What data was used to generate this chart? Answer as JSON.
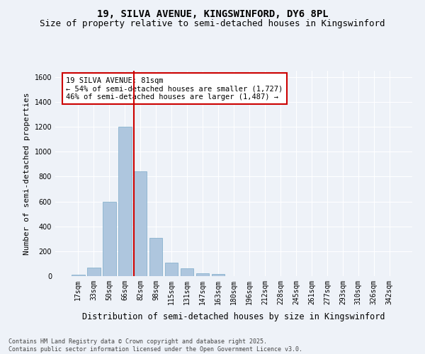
{
  "title": "19, SILVA AVENUE, KINGSWINFORD, DY6 8PL",
  "subtitle": "Size of property relative to semi-detached houses in Kingswinford",
  "xlabel": "Distribution of semi-detached houses by size in Kingswinford",
  "ylabel": "Number of semi-detached properties",
  "categories": [
    "17sqm",
    "33sqm",
    "50sqm",
    "66sqm",
    "82sqm",
    "98sqm",
    "115sqm",
    "131sqm",
    "147sqm",
    "163sqm",
    "180sqm",
    "196sqm",
    "212sqm",
    "228sqm",
    "245sqm",
    "261sqm",
    "277sqm",
    "293sqm",
    "310sqm",
    "326sqm",
    "342sqm"
  ],
  "values": [
    10,
    70,
    600,
    1200,
    840,
    310,
    110,
    60,
    25,
    15,
    0,
    0,
    0,
    0,
    0,
    0,
    0,
    0,
    0,
    0,
    0
  ],
  "bar_color": "#aec6de",
  "bar_edge_color": "#7aaac8",
  "vline_color": "#cc0000",
  "vline_x": 3.575,
  "annotation_text": "19 SILVA AVENUE: 81sqm\n← 54% of semi-detached houses are smaller (1,727)\n46% of semi-detached houses are larger (1,487) →",
  "annotation_box_color": "#ffffff",
  "annotation_box_edge": "#cc0000",
  "ylim": [
    0,
    1650
  ],
  "yticks": [
    0,
    200,
    400,
    600,
    800,
    1000,
    1200,
    1400,
    1600
  ],
  "footer": "Contains HM Land Registry data © Crown copyright and database right 2025.\nContains public sector information licensed under the Open Government Licence v3.0.",
  "bg_color": "#eef2f8",
  "grid_color": "#ffffff",
  "title_fontsize": 10,
  "subtitle_fontsize": 9,
  "xlabel_fontsize": 8.5,
  "ylabel_fontsize": 8,
  "tick_fontsize": 7,
  "annot_fontsize": 7.5,
  "footer_fontsize": 6
}
